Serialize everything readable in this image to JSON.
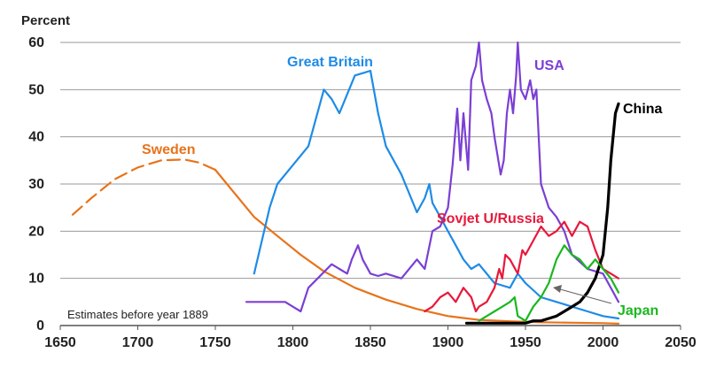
{
  "chart_data": {
    "type": "line",
    "title": "",
    "ylabel": "Percent",
    "xlabel": "",
    "xlim": [
      1650,
      2050
    ],
    "ylim": [
      0,
      60
    ],
    "xticks": [
      1650,
      1700,
      1750,
      1800,
      1850,
      1900,
      1950,
      2000,
      2050
    ],
    "yticks": [
      0,
      10,
      20,
      30,
      40,
      50,
      60
    ],
    "grid": "horizontal",
    "annotation": "Estimates before year 1889",
    "series": [
      {
        "name": "Sweden",
        "color": "#e8731a",
        "segments": [
          {
            "style": "dashed",
            "x": [
              1658,
              1670,
              1685,
              1700,
              1715,
              1730,
              1740,
              1750
            ],
            "y": [
              23.5,
              27,
              31,
              33.5,
              35,
              35.2,
              34.5,
              33
            ]
          },
          {
            "style": "solid",
            "x": [
              1750,
              1760,
              1775,
              1790,
              1805,
              1820,
              1840,
              1860,
              1880,
              1900,
              1920,
              1940,
              1960,
              1980,
              2000,
              2010
            ],
            "y": [
              33,
              29,
              23,
              19,
              15,
              11.5,
              8,
              5.5,
              3.5,
              2,
              1.2,
              0.9,
              0.7,
              0.6,
              0.5,
              0.4
            ]
          }
        ]
      },
      {
        "name": "Great Britain",
        "color": "#1e8be6",
        "segments": [
          {
            "style": "solid",
            "x": [
              1775,
              1785,
              1790,
              1800,
              1810,
              1820,
              1825,
              1830,
              1840,
              1845,
              1850,
              1855,
              1860,
              1870,
              1880,
              1885,
              1888,
              1890,
              1895,
              1900,
              1905,
              1910,
              1915,
              1920,
              1930,
              1940,
              1945,
              1950,
              1960,
              1970,
              1980,
              1990,
              2000,
              2010
            ],
            "y": [
              11,
              25,
              30,
              34,
              38,
              50,
              48,
              45,
              53,
              53.5,
              54,
              45,
              38,
              32,
              24,
              27,
              30,
              26,
              23,
              20,
              17,
              14,
              12,
              13,
              9,
              8,
              11,
              9,
              6,
              5,
              4,
              3,
              2,
              1.5
            ]
          }
        ]
      },
      {
        "name": "USA",
        "color": "#7b3fd4",
        "segments": [
          {
            "style": "solid",
            "x": [
              1770,
              1795,
              1800,
              1805,
              1810,
              1825,
              1830,
              1835,
              1838,
              1842,
              1845,
              1850,
              1855,
              1860,
              1870,
              1880,
              1885,
              1890,
              1895,
              1900,
              1903,
              1906,
              1908,
              1910,
              1913,
              1915,
              1918,
              1920,
              1922,
              1925,
              1928,
              1930,
              1932,
              1934,
              1936,
              1938,
              1940,
              1942,
              1944,
              1945,
              1947,
              1950,
              1953,
              1955,
              1957,
              1960,
              1965,
              1970,
              1975,
              1980,
              1990,
              2000,
              2005,
              2010
            ],
            "y": [
              5,
              5,
              4,
              3,
              8,
              13,
              12,
              11,
              14,
              17,
              14,
              11,
              10.5,
              11,
              10,
              14,
              12,
              20,
              21,
              25,
              34,
              46,
              35,
              45,
              33,
              52,
              55,
              60,
              52,
              48,
              45,
              40,
              36,
              32,
              35,
              45,
              50,
              45,
              53,
              60,
              50,
              48,
              52,
              48,
              50,
              30,
              25,
              23,
              20,
              15,
              12,
              11,
              8,
              5
            ]
          }
        ]
      },
      {
        "name": "Sovjet U/Russia",
        "color": "#e8183a",
        "segments": [
          {
            "style": "solid",
            "x": [
              1885,
              1890,
              1895,
              1900,
              1905,
              1910,
              1915,
              1918,
              1920,
              1925,
              1930,
              1933,
              1935,
              1937,
              1940,
              1945,
              1948,
              1950,
              1955,
              1960,
              1965,
              1970,
              1975,
              1980,
              1985,
              1990,
              1995,
              2000,
              2005,
              2010
            ],
            "y": [
              3,
              4,
              6,
              7,
              5,
              8,
              6,
              3,
              4,
              5,
              8,
              12,
              10,
              15,
              14,
              11,
              16,
              15,
              18,
              21,
              19,
              20,
              22,
              19,
              22,
              21,
              16,
              12,
              11,
              10
            ]
          }
        ]
      },
      {
        "name": "China",
        "color": "#000000",
        "segments": [
          {
            "style": "solid",
            "x": [
              1912,
              1920,
              1930,
              1940,
              1950,
              1955,
              1960,
              1965,
              1970,
              1975,
              1980,
              1985,
              1990,
              1995,
              2000,
              2003,
              2005,
              2008,
              2010
            ],
            "y": [
              0.5,
              0.5,
              0.5,
              0.5,
              0.5,
              1,
              1,
              1.5,
              2,
              3,
              4,
              5,
              7,
              10,
              15,
              25,
              35,
              45,
              47
            ]
          }
        ]
      },
      {
        "name": "Japan",
        "color": "#19b81e",
        "segments": [
          {
            "style": "solid",
            "x": [
              1920,
              1925,
              1930,
              1935,
              1940,
              1943,
              1945,
              1950,
              1955,
              1960,
              1965,
              1970,
              1975,
              1980,
              1985,
              1990,
              1995,
              2000,
              2005,
              2010
            ],
            "y": [
              1,
              2,
              3,
              4,
              5,
              6,
              2,
              1,
              4,
              6,
              9,
              14,
              17,
              15,
              14,
              12,
              14,
              12,
              10,
              7
            ]
          }
        ]
      }
    ]
  }
}
